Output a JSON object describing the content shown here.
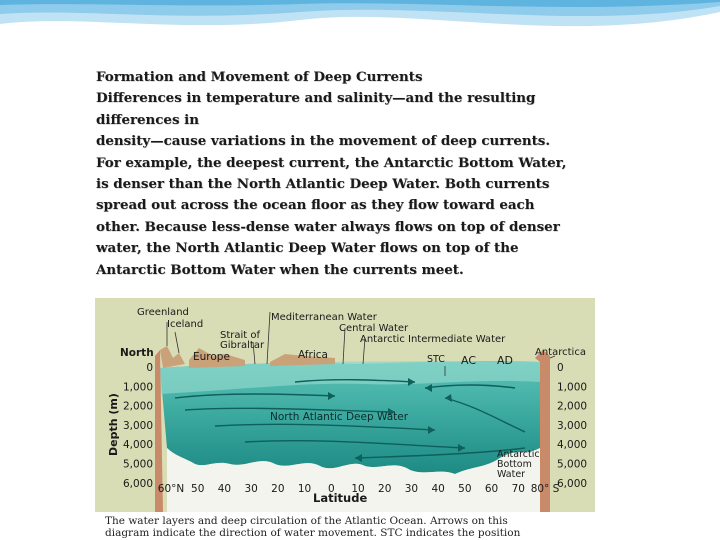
{
  "slide": {
    "title": "Formation and Movement of Deep Currents",
    "paragraph_lines": [
      "Differences  in temperature and salinity—and the resulting",
      "differences in",
      "density—cause variations in the movement of deep currents.",
      "For example, the deepest current, the Antarctic Bottom Water,",
      "is denser than the North Atlantic Deep Water. Both currents",
      "spread out across the ocean floor as they flow toward each",
      "other. Because less-dense water always flows on top of denser",
      "water, the North Atlantic Deep Water flows on top of the",
      "Antarctic Bottom Water when the currents meet."
    ]
  },
  "figure": {
    "labels": {
      "greenland": "Greenland",
      "iceland": "Iceland",
      "strait": "Strait of",
      "gibraltar": "Gibraltar",
      "mediterranean": "Mediterranean Water",
      "central": "Central Water",
      "antarctic_intermediate": "Antarctic Intermediate Water",
      "antarctica": "Antarctica",
      "north": "North",
      "europe": "Europe",
      "africa": "Africa",
      "stc": "STC",
      "ac": "AC",
      "ad": "AD",
      "nadw": "North Atlantic Deep Water",
      "aabw_1": "Antarctic",
      "aabw_2": "Bottom",
      "aabw_3": "Water",
      "depth_axis": "Depth (m)",
      "latitude_axis": "Latitude"
    },
    "depth_ticks": [
      "0",
      "1,000",
      "2,000",
      "3,000",
      "4,000",
      "5,000",
      "6,000"
    ],
    "latitude_ticks": [
      "60°N",
      "50",
      "40",
      "30",
      "20",
      "10",
      "0",
      "10",
      "20",
      "30",
      "40",
      "50",
      "60",
      "70",
      "80° S"
    ],
    "caption_lines": [
      "The water layers and deep circulation of the Atlantic Ocean.  Arrows on this",
      "diagram indicate the direction of water movement.  STC indicates the position"
    ],
    "colors": {
      "sky": "#d9ddb8",
      "water_dark": "#1f8f8a",
      "water_mid": "#3fb0a6",
      "water_light": "#7fd0c5",
      "seafloor": "#ffffff",
      "land": "#c9a27a",
      "accent_wave": "#7fc7e8"
    }
  }
}
